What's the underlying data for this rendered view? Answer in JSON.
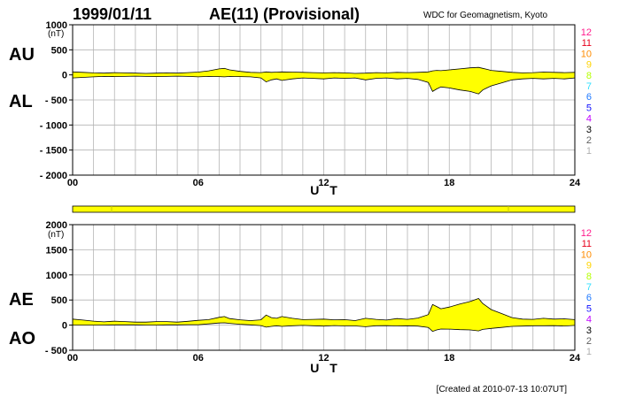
{
  "header": {
    "date": "1999/01/11",
    "title": "AE(11) (Provisional)",
    "source": "WDC for Geomagnetism, Kyoto"
  },
  "footer": {
    "created": "[Created at 2010-07-13 10:07UT]"
  },
  "colors": {
    "fill": "#ffff00",
    "grid": "#b4b4b4",
    "axis": "#000000"
  },
  "legend": {
    "labels": [
      "12",
      "11",
      "10",
      "9",
      "8",
      "7",
      "6",
      "5",
      "4",
      "3",
      "2",
      "1"
    ],
    "colors": [
      "#ff1a8c",
      "#e8001c",
      "#ff8c00",
      "#ffd400",
      "#b4ff00",
      "#30e0ff",
      "#1e78ff",
      "#1010ff",
      "#c000ff",
      "#000000",
      "#606060",
      "#b0b0b0"
    ]
  },
  "chart_data": [
    {
      "type": "area",
      "name": "AU/AL",
      "side_labels": {
        "upper": "AU",
        "lower": "AL"
      },
      "unit": "(nT)",
      "xlabel": "U T",
      "xlim": [
        0,
        24
      ],
      "ylim": [
        -2000,
        1000
      ],
      "y_ticks": [
        1000,
        500,
        0,
        -500,
        -1000,
        -1500,
        -2000
      ],
      "y_tick_labels": [
        "1000",
        "500",
        "0",
        "- 500",
        "- 1000",
        "- 1500",
        "- 2000"
      ],
      "x_ticks": [
        0,
        6,
        12,
        18,
        24
      ],
      "x_tick_labels": [
        "00",
        "06",
        "12",
        "18",
        "24"
      ],
      "x": [
        0,
        0.5,
        1,
        1.5,
        2,
        2.5,
        3,
        3.5,
        4,
        4.5,
        5,
        5.5,
        6,
        6.5,
        7,
        7.25,
        7.5,
        8,
        8.5,
        9,
        9.25,
        9.5,
        9.75,
        10,
        10.5,
        11,
        11.5,
        12,
        12.5,
        13,
        13.5,
        14,
        14.5,
        15,
        15.5,
        16,
        16.5,
        17,
        17.2,
        17.4,
        17.6,
        18,
        18.5,
        19,
        19.4,
        19.6,
        19.8,
        20,
        20.5,
        21,
        21.5,
        22,
        22.5,
        23,
        23.5,
        24
      ],
      "series": [
        {
          "name": "AU",
          "values": [
            60,
            50,
            40,
            35,
            45,
            40,
            35,
            30,
            35,
            40,
            35,
            45,
            55,
            80,
            120,
            130,
            100,
            70,
            50,
            45,
            60,
            50,
            55,
            60,
            55,
            50,
            45,
            40,
            45,
            40,
            30,
            35,
            45,
            40,
            50,
            45,
            50,
            60,
            80,
            90,
            85,
            100,
            120,
            140,
            150,
            130,
            110,
            90,
            70,
            50,
            40,
            45,
            55,
            50,
            45,
            50
          ]
        },
        {
          "name": "AL",
          "values": [
            -60,
            -50,
            -40,
            -30,
            -35,
            -30,
            -25,
            -30,
            -35,
            -30,
            -25,
            -30,
            -40,
            -30,
            -35,
            -40,
            -30,
            -35,
            -40,
            -60,
            -140,
            -100,
            -80,
            -110,
            -80,
            -60,
            -70,
            -80,
            -60,
            -70,
            -60,
            -100,
            -70,
            -60,
            -80,
            -70,
            -90,
            -150,
            -330,
            -280,
            -240,
            -260,
            -300,
            -330,
            -380,
            -300,
            -260,
            -220,
            -160,
            -100,
            -80,
            -70,
            -80,
            -70,
            -80,
            -60
          ]
        }
      ]
    },
    {
      "type": "area",
      "name": "AE/AO",
      "side_labels": {
        "upper": "AE",
        "lower": "AO"
      },
      "unit": "(nT)",
      "xlabel": "U T",
      "xlim": [
        0,
        24
      ],
      "ylim": [
        -500,
        2000
      ],
      "y_ticks": [
        2000,
        1500,
        1000,
        500,
        0,
        -500
      ],
      "y_tick_labels": [
        "2000",
        "1500",
        "1000",
        "500",
        "0",
        "- 500"
      ],
      "x_ticks": [
        0,
        6,
        12,
        18,
        24
      ],
      "x_tick_labels": [
        "00",
        "06",
        "12",
        "18",
        "24"
      ],
      "x": [
        0,
        0.5,
        1,
        1.5,
        2,
        2.5,
        3,
        3.5,
        4,
        4.5,
        5,
        5.5,
        6,
        6.5,
        7,
        7.25,
        7.5,
        8,
        8.5,
        9,
        9.25,
        9.5,
        9.75,
        10,
        10.5,
        11,
        11.5,
        12,
        12.5,
        13,
        13.5,
        14,
        14.5,
        15,
        15.5,
        16,
        16.5,
        17,
        17.2,
        17.4,
        17.6,
        18,
        18.5,
        19,
        19.4,
        19.6,
        19.8,
        20,
        20.5,
        21,
        21.5,
        22,
        22.5,
        23,
        23.5,
        24
      ],
      "series": [
        {
          "name": "AE",
          "values": [
            120,
            100,
            80,
            65,
            80,
            70,
            60,
            60,
            70,
            70,
            60,
            75,
            95,
            110,
            155,
            170,
            130,
            105,
            90,
            105,
            200,
            150,
            135,
            170,
            135,
            110,
            115,
            120,
            105,
            110,
            90,
            135,
            115,
            100,
            130,
            115,
            140,
            210,
            410,
            370,
            325,
            360,
            420,
            470,
            530,
            430,
            370,
            310,
            230,
            150,
            120,
            115,
            135,
            120,
            125,
            110
          ]
        },
        {
          "name": "AO",
          "values": [
            0,
            0,
            0,
            2,
            5,
            5,
            5,
            0,
            0,
            5,
            5,
            8,
            8,
            25,
            43,
            45,
            35,
            18,
            5,
            -8,
            -40,
            -25,
            -12,
            -25,
            -12,
            -5,
            -12,
            -20,
            -8,
            -15,
            -15,
            -32,
            -12,
            -10,
            -15,
            -12,
            -20,
            -45,
            -125,
            -95,
            -78,
            -80,
            -90,
            -95,
            -115,
            -85,
            -75,
            -65,
            -45,
            -25,
            -20,
            -12,
            -12,
            -10,
            -18,
            -5
          ]
        }
      ]
    }
  ]
}
